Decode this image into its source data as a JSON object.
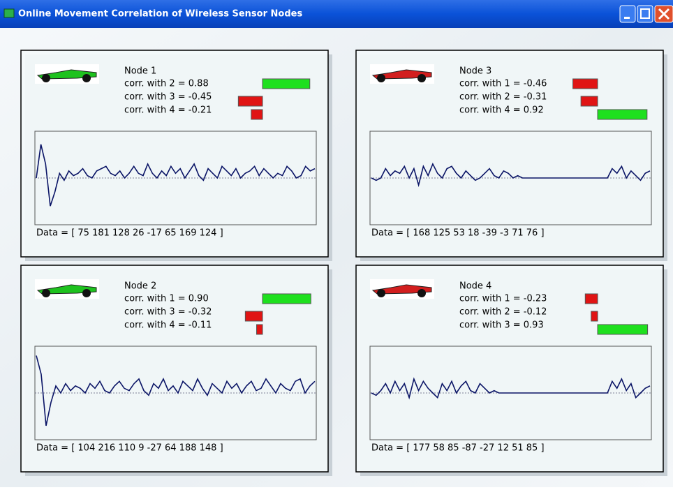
{
  "window": {
    "title": "Online Movement Correlation of Wireless Sensor Nodes"
  },
  "panels": [
    {
      "title": "Node 1",
      "car_color": "#1ec21e",
      "correlations": [
        {
          "text": "corr. with 2 = 0.88",
          "value": 0.88
        },
        {
          "text": "corr. with 3 = -0.45",
          "value": -0.45
        },
        {
          "text": "corr. with 4 = -0.21",
          "value": -0.21
        }
      ],
      "ylim": [
        -1,
        1
      ],
      "values": [
        0,
        0.72,
        0.3,
        -0.6,
        -0.3,
        0.1,
        -0.05,
        0.15,
        0.05,
        0.1,
        0.2,
        0.05,
        0.0,
        0.15,
        0.2,
        0.25,
        0.1,
        0.05,
        0.15,
        0.0,
        0.1,
        0.25,
        0.1,
        0.05,
        0.3,
        0.1,
        0.0,
        0.15,
        0.05,
        0.25,
        0.1,
        0.2,
        0.0,
        0.15,
        0.3,
        0.05,
        -0.05,
        0.2,
        0.1,
        0.0,
        0.25,
        0.15,
        0.05,
        0.2,
        0.0,
        0.1,
        0.15,
        0.25,
        0.05,
        0.2,
        0.1,
        0.0,
        0.1,
        0.05,
        0.25,
        0.15,
        0.0,
        0.05,
        0.25,
        0.15,
        0.2
      ],
      "data_text": "Data = [ 75 181 128 26 -17 65 169 124 ]"
    },
    {
      "title": "Node 3",
      "car_color": "#d21e1e",
      "correlations": [
        {
          "text": "corr. with 1 = -0.46",
          "value": -0.46
        },
        {
          "text": "corr. with 2 = -0.31",
          "value": -0.31
        },
        {
          "text": "corr. with 4 = 0.92",
          "value": 0.92
        }
      ],
      "ylim": [
        -1,
        1
      ],
      "values": [
        0,
        -0.05,
        0.0,
        0.2,
        0.05,
        0.15,
        0.1,
        0.25,
        0.0,
        0.2,
        -0.15,
        0.25,
        0.05,
        0.3,
        0.1,
        0.0,
        0.2,
        0.25,
        0.1,
        0.0,
        0.15,
        0.05,
        -0.05,
        0.0,
        0.1,
        0.2,
        0.05,
        0.0,
        0.15,
        0.1,
        0.0,
        0.05,
        0.0,
        0.0,
        0.0,
        0.0,
        0.0,
        0.0,
        0.0,
        0.0,
        0.0,
        0.0,
        0.0,
        0.0,
        0.0,
        0.0,
        0.0,
        0.0,
        0.0,
        0.0,
        0.0,
        0.2,
        0.1,
        0.25,
        0.0,
        0.15,
        0.05,
        -0.05,
        0.1,
        0.15
      ],
      "data_text": "Data = [ 168 125 53 18 -39 -3 71 76 ]"
    },
    {
      "title": "Node 2",
      "car_color": "#1ec21e",
      "correlations": [
        {
          "text": "corr. with 1 = 0.90",
          "value": 0.9
        },
        {
          "text": "corr. with 3 = -0.32",
          "value": -0.32
        },
        {
          "text": "corr. with 4 = -0.11",
          "value": -0.11
        }
      ],
      "ylim": [
        -1,
        1
      ],
      "values": [
        0.8,
        0.4,
        -0.7,
        -0.2,
        0.15,
        0.0,
        0.2,
        0.05,
        0.15,
        0.1,
        0.0,
        0.2,
        0.1,
        0.25,
        0.05,
        0.0,
        0.15,
        0.25,
        0.1,
        0.05,
        0.2,
        0.3,
        0.05,
        -0.05,
        0.2,
        0.1,
        0.3,
        0.05,
        0.15,
        0.0,
        0.25,
        0.15,
        0.05,
        0.3,
        0.1,
        -0.05,
        0.2,
        0.1,
        0.0,
        0.25,
        0.1,
        0.2,
        0.0,
        0.15,
        0.25,
        0.05,
        0.1,
        0.3,
        0.15,
        0.0,
        0.2,
        0.1,
        0.05,
        0.25,
        0.3,
        0.0,
        0.15,
        0.25
      ],
      "data_text": "Data = [ 104 216 110 9 -27 64 188 148 ]"
    },
    {
      "title": "Node 4",
      "car_color": "#d21e1e",
      "correlations": [
        {
          "text": "corr. with 1 = -0.23",
          "value": -0.23
        },
        {
          "text": "corr. with 2 = -0.12",
          "value": -0.12
        },
        {
          "text": "corr. with 3 = 0.93",
          "value": 0.93
        }
      ],
      "ylim": [
        -1,
        1
      ],
      "values": [
        0,
        -0.05,
        0.05,
        0.2,
        0.0,
        0.25,
        0.05,
        0.2,
        -0.1,
        0.3,
        0.05,
        0.25,
        0.1,
        0.0,
        -0.1,
        0.2,
        0.05,
        0.25,
        0.0,
        0.15,
        0.25,
        0.05,
        0.0,
        0.2,
        0.1,
        0.0,
        0.05,
        0.0,
        0.0,
        0.0,
        0.0,
        0.0,
        0.0,
        0.0,
        0.0,
        0.0,
        0.0,
        0.0,
        0.0,
        0.0,
        0.0,
        0.0,
        0.0,
        0.0,
        0.0,
        0.0,
        0.0,
        0.0,
        0.0,
        0.0,
        0.0,
        0.25,
        0.1,
        0.3,
        0.05,
        0.2,
        -0.1,
        0.0,
        0.1,
        0.15
      ],
      "data_text": "Data = [ 177 58 85 -87 -27 12 51 85 ]"
    }
  ]
}
